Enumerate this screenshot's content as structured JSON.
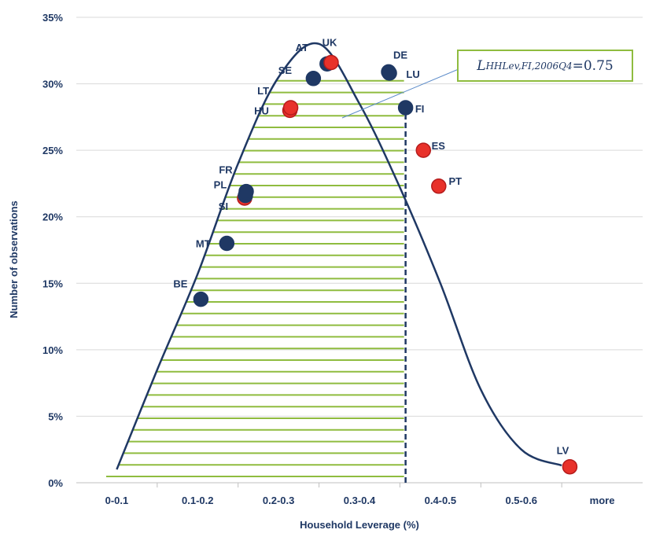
{
  "chart_data": {
    "type": "line",
    "title": "",
    "xlabel": "Household Leverage (%)",
    "ylabel": "Number of observations",
    "categories": [
      "0-0.1",
      "0.1-0.2",
      "0.2-0.3",
      "0.3-0.4",
      "0.4-0.5",
      "0.5-0.6",
      "more"
    ],
    "y_ticks": [
      "0%",
      "5%",
      "10%",
      "15%",
      "20%",
      "25%",
      "30%",
      "35%"
    ],
    "ylim": [
      0,
      35
    ],
    "grid": "horizontal",
    "curve_color": "#1f3864",
    "hatch_color": "#8fbc3f",
    "curve": [
      {
        "x": 0.5,
        "y": 1.0
      },
      {
        "x": 1.0,
        "y": 8.5
      },
      {
        "x": 1.5,
        "y": 15.7
      },
      {
        "x": 2.0,
        "y": 24.0
      },
      {
        "x": 2.5,
        "y": 30.5
      },
      {
        "x": 3.0,
        "y": 33.0
      },
      {
        "x": 3.5,
        "y": 28.5
      },
      {
        "x": 4.0,
        "y": 22.2
      },
      {
        "x": 4.5,
        "y": 15.0
      },
      {
        "x": 5.0,
        "y": 7.0
      },
      {
        "x": 5.5,
        "y": 2.5
      },
      {
        "x": 6.0,
        "y": 1.3
      }
    ],
    "points": [
      {
        "label": "BE",
        "x": 1.54,
        "y": 13.8,
        "color": "navy"
      },
      {
        "label": "MT",
        "x": 1.86,
        "y": 18.0,
        "color": "navy"
      },
      {
        "label": "SI",
        "x": 2.08,
        "y": 21.4,
        "color": "red"
      },
      {
        "label": "PL",
        "x": 2.09,
        "y": 21.6,
        "color": "navy"
      },
      {
        "label": "FR",
        "x": 2.1,
        "y": 21.9,
        "color": "navy"
      },
      {
        "label": "HU",
        "x": 2.64,
        "y": 28.0,
        "color": "red"
      },
      {
        "label": "LT",
        "x": 2.65,
        "y": 28.2,
        "color": "red"
      },
      {
        "label": "SE",
        "x": 2.93,
        "y": 30.4,
        "color": "navy"
      },
      {
        "label": "AT",
        "x": 3.1,
        "y": 31.5,
        "color": "navy"
      },
      {
        "label": "UK",
        "x": 3.15,
        "y": 31.6,
        "color": "red"
      },
      {
        "label": "DE",
        "x": 3.86,
        "y": 30.9,
        "color": "navy"
      },
      {
        "label": "LU",
        "x": 3.87,
        "y": 30.8,
        "color": "navy"
      },
      {
        "label": "FI",
        "x": 4.07,
        "y": 28.2,
        "color": "navy"
      },
      {
        "label": "ES",
        "x": 4.29,
        "y": 25.0,
        "color": "red"
      },
      {
        "label": "PT",
        "x": 4.48,
        "y": 22.3,
        "color": "red"
      },
      {
        "label": "LV",
        "x": 6.1,
        "y": 1.2,
        "color": "red"
      }
    ],
    "cutoff_x": 4.07,
    "annotation": {
      "symbol": "L",
      "subscript": "HHLev,FI,2006Q4",
      "value": " =0.75"
    }
  }
}
